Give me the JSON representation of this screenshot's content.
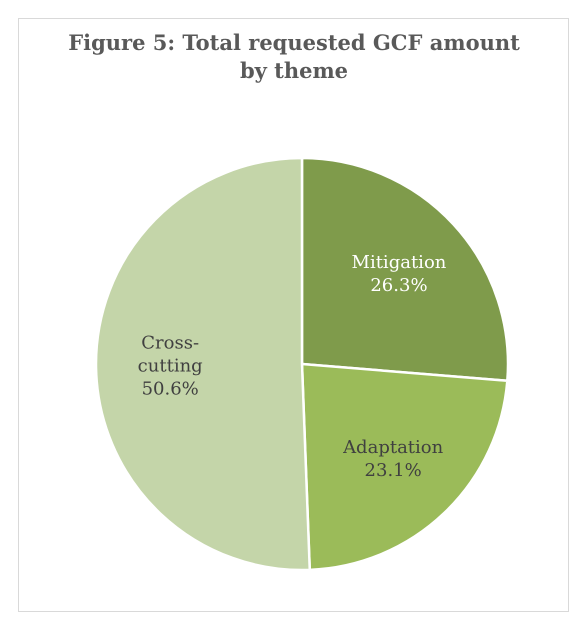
{
  "chart_data": {
    "type": "pie",
    "title": "Figure 5: Total requested GCF amount by theme",
    "categories": [
      "Mitigation",
      "Adaptation",
      "Cross-cutting"
    ],
    "values": [
      26.3,
      23.1,
      50.6
    ],
    "value_labels": [
      "26.3%",
      "23.1%",
      "50.6%"
    ],
    "colors": [
      "#7f9b4b",
      "#9bbb59",
      "#c4d5a9"
    ],
    "label_colors": [
      "#ffffff",
      "#404040",
      "#404040"
    ]
  }
}
